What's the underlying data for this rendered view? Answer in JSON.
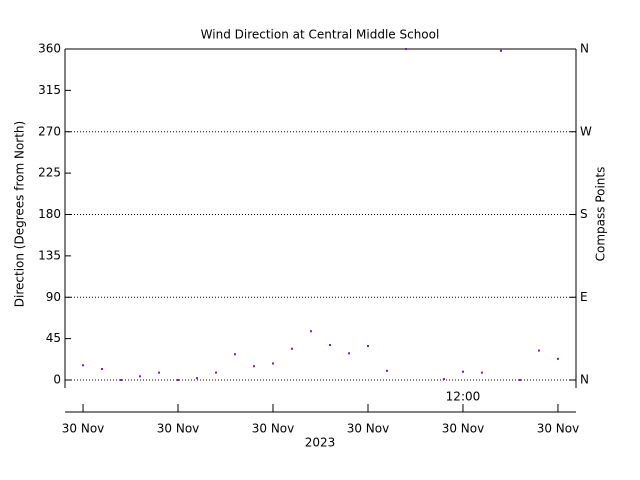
{
  "chart_data": {
    "type": "scatter",
    "title": "Wind Direction at Central Middle School",
    "ylabel": "Direction (Degrees from North)",
    "y2label": "Compass Points",
    "xlabel": "2023",
    "annotation": {
      "text": "12:00",
      "x": 20
    },
    "x": [
      0,
      1,
      2,
      3,
      4,
      5,
      6,
      7,
      8,
      9,
      10,
      11,
      12,
      13,
      14,
      15,
      16,
      17,
      18,
      19,
      20,
      21,
      22,
      23,
      24,
      25
    ],
    "series": [
      {
        "color": "#6a1fd0",
        "values": [
          16,
          12,
          0,
          4,
          8,
          0,
          2,
          8,
          28,
          15,
          18,
          34,
          53,
          38,
          29,
          37,
          10,
          360,
          null,
          1,
          9,
          8,
          358,
          0,
          32,
          23
        ]
      }
    ],
    "xlim": [
      -0.95,
      25.95
    ],
    "xticks": [
      {
        "value": 0,
        "label": "30 Nov"
      },
      {
        "value": 5,
        "label": "30 Nov"
      },
      {
        "value": 10,
        "label": "30 Nov"
      },
      {
        "value": 15,
        "label": "30 Nov"
      },
      {
        "value": 20,
        "label": "30 Nov"
      },
      {
        "value": 25,
        "label": "30 Nov"
      }
    ],
    "ylim": [
      0,
      360
    ],
    "yticks": [
      0,
      45,
      90,
      135,
      180,
      225,
      270,
      315,
      360
    ],
    "y2lim": [
      0,
      360
    ],
    "y2ticks": [
      {
        "value": 0,
        "label": "N"
      },
      {
        "value": 90,
        "label": "E"
      },
      {
        "value": 180,
        "label": "S"
      },
      {
        "value": 270,
        "label": "W"
      },
      {
        "value": 360,
        "label": "N"
      }
    ],
    "grid": true
  }
}
